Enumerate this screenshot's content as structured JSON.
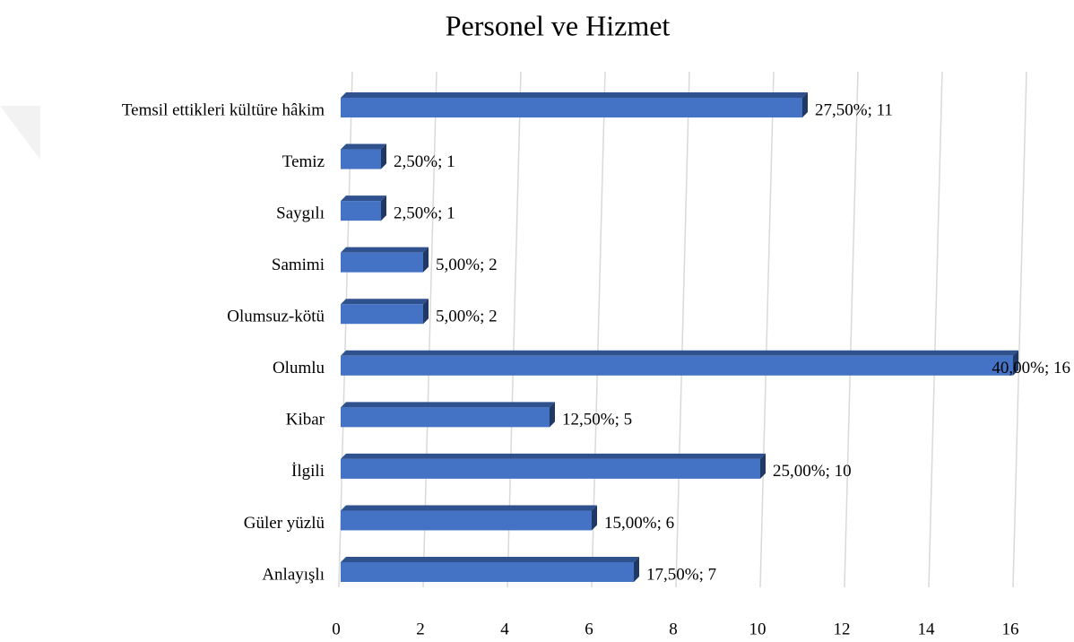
{
  "chart_data": {
    "type": "bar3d_horizontal",
    "title": "Personel ve Hizmet",
    "categories": [
      "Temsil ettikleri kültüre hâkim",
      "Temiz",
      "Saygılı",
      "Samimi",
      "Olumsuz-kötü",
      "Olumlu",
      "Kibar",
      "İlgili",
      "Güler yüzlü",
      "Anlayışlı"
    ],
    "values": [
      11,
      1,
      1,
      2,
      2,
      16,
      5,
      10,
      6,
      7
    ],
    "value_labels": [
      "27,50%; 11",
      "2,50%; 1",
      "2,50%; 1",
      "5,00%; 2",
      "5,00%; 2",
      "40,00%; 16",
      "12,50%; 5",
      "25,00%; 10",
      "15,00%; 6",
      "17,50%; 7"
    ],
    "color": "#4472c4",
    "xlim": [
      0,
      16
    ],
    "xticks": [
      0,
      2,
      4,
      6,
      8,
      10,
      12,
      14,
      16
    ],
    "grid": true
  }
}
